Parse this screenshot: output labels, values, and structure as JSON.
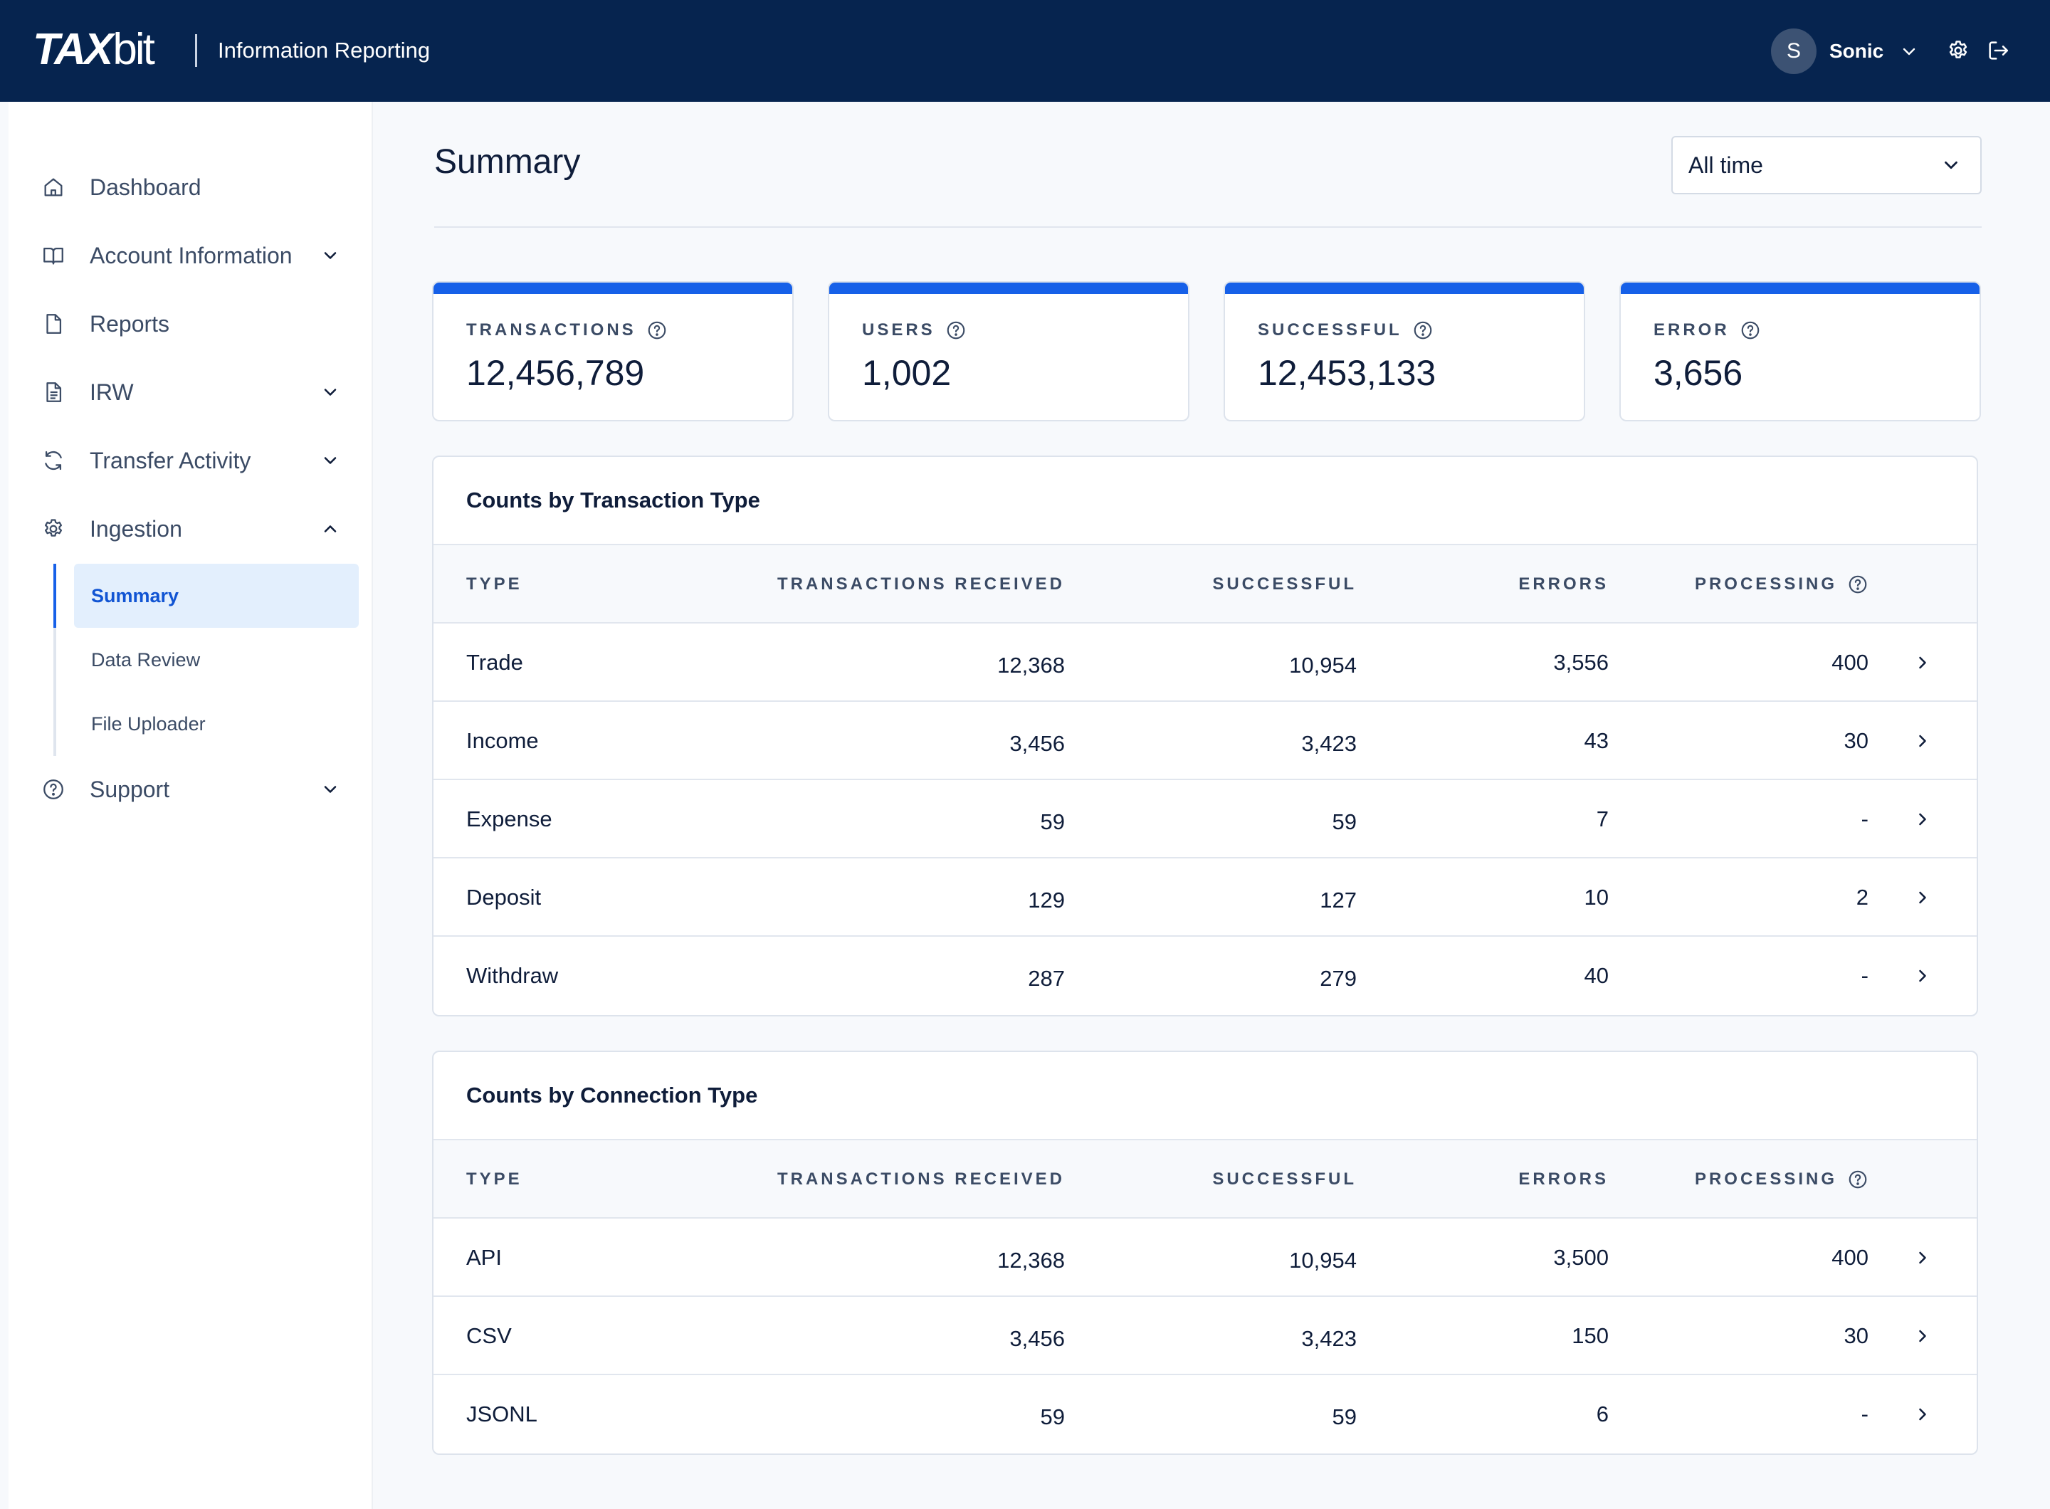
{
  "header": {
    "logo_tax": "TAX",
    "logo_bit": "bit",
    "product": "Information Reporting",
    "user_initial": "S",
    "user_name": "Sonic"
  },
  "sidebar": {
    "items": [
      {
        "label": "Dashboard",
        "icon": "home-icon"
      },
      {
        "label": "Account Information",
        "icon": "book-icon"
      },
      {
        "label": "Reports",
        "icon": "file-icon"
      },
      {
        "label": "IRW",
        "icon": "document-icon"
      },
      {
        "label": "Transfer Activity",
        "icon": "refresh-icon"
      },
      {
        "label": "Ingestion",
        "icon": "gear-icon"
      },
      {
        "label": "Support",
        "icon": "help-icon"
      }
    ],
    "ingestion_sub": [
      "Summary",
      "Data Review",
      "File Uploader"
    ]
  },
  "main": {
    "title": "Summary",
    "range": "All time",
    "stats": [
      {
        "label": "TRANSACTIONS",
        "value": "12,456,789"
      },
      {
        "label": "USERS",
        "value": "1,002"
      },
      {
        "label": "SUCCESSFUL",
        "value": "12,453,133"
      },
      {
        "label": "ERROR",
        "value": "3,656"
      }
    ],
    "columns": {
      "type": "TYPE",
      "received": "TRANSACTIONS RECEIVED",
      "successful": "SUCCESSFUL",
      "errors": "ERRORS",
      "processing": "PROCESSING"
    },
    "by_transaction": {
      "title": "Counts by Transaction Type",
      "rows": [
        {
          "type": "Trade",
          "received": "12,368",
          "successful": "10,954",
          "errors": "3,556",
          "processing": "400"
        },
        {
          "type": "Income",
          "received": "3,456",
          "successful": "3,423",
          "errors": "43",
          "processing": "30"
        },
        {
          "type": "Expense",
          "received": "59",
          "successful": "59",
          "errors": "7",
          "processing": "-"
        },
        {
          "type": "Deposit",
          "received": "129",
          "successful": "127",
          "errors": "10",
          "processing": "2"
        },
        {
          "type": "Withdraw",
          "received": "287",
          "successful": "279",
          "errors": "40",
          "processing": "-"
        }
      ]
    },
    "by_connection": {
      "title": "Counts by Connection Type",
      "rows": [
        {
          "type": "API",
          "received": "12,368",
          "successful": "10,954",
          "errors": "3,500",
          "processing": "400"
        },
        {
          "type": "CSV",
          "received": "3,456",
          "successful": "3,423",
          "errors": "150",
          "processing": "30"
        },
        {
          "type": "JSONL",
          "received": "59",
          "successful": "59",
          "errors": "6",
          "processing": "-"
        }
      ]
    }
  },
  "colors": {
    "topbar": "#06244f",
    "accent": "#1660e8",
    "active_bg": "#e3effd"
  }
}
